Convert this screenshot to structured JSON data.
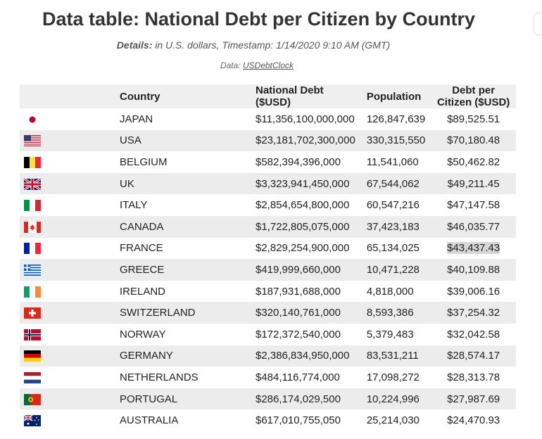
{
  "header": {
    "title": "Data table: National Debt per Citizen by Country",
    "details_label": "Details:",
    "details_text": " in U.S. dollars, Timestamp: 1/14/2020 9:10 AM (GMT)",
    "source_label": "Data: ",
    "source_link": "USDebtClock"
  },
  "table": {
    "columns": [
      "",
      "Country",
      "National Debt ($USD)",
      "Population",
      "Debt per Citizen ($USD)"
    ],
    "rows": [
      {
        "flag": "japan-flag-icon",
        "country": "JAPAN",
        "debt": "$11,356,100,000,000",
        "population": "126,847,639",
        "per_citizen": "$89,525.51"
      },
      {
        "flag": "usa-flag-icon",
        "country": "USA",
        "debt": "$23,181,702,300,000",
        "population": "330,315,550",
        "per_citizen": "$70,180.48"
      },
      {
        "flag": "belgium-flag-icon",
        "country": "BELGIUM",
        "debt": "$582,394,396,000",
        "population": "11,541,060",
        "per_citizen": "$50,462.82"
      },
      {
        "flag": "uk-flag-icon",
        "country": "UK",
        "debt": "$3,323,941,450,000",
        "population": "67,544,062",
        "per_citizen": "$49,211.45"
      },
      {
        "flag": "italy-flag-icon",
        "country": "ITALY",
        "debt": "$2,854,654,800,000",
        "population": "60,547,216",
        "per_citizen": "$47,147.58"
      },
      {
        "flag": "canada-flag-icon",
        "country": "CANADA",
        "debt": "$1,722,805,075,000",
        "population": "37,423,183",
        "per_citizen": "$46,035.77"
      },
      {
        "flag": "france-flag-icon",
        "country": "FRANCE",
        "debt": "$2,829,254,900,000",
        "population": "65,134,025",
        "per_citizen": "$43,437.43"
      },
      {
        "flag": "greece-flag-icon",
        "country": "GREECE",
        "debt": "$419,999,660,000",
        "population": "10,471,228",
        "per_citizen": "$40,109.88"
      },
      {
        "flag": "ireland-flag-icon",
        "country": "IRELAND",
        "debt": "$187,931,688,000",
        "population": "4,818,000",
        "per_citizen": "$39,006.16"
      },
      {
        "flag": "switzerland-flag-icon",
        "country": "SWITZERLAND",
        "debt": "$320,140,761,000",
        "population": "8,593,386",
        "per_citizen": "$37,254.32"
      },
      {
        "flag": "norway-flag-icon",
        "country": "NORWAY",
        "debt": "$172,372,540,000",
        "population": "5,379,483",
        "per_citizen": "$32,042.58"
      },
      {
        "flag": "germany-flag-icon",
        "country": "GERMANY",
        "debt": "$2,386,834,950,000",
        "population": "83,531,211",
        "per_citizen": "$28,574.17"
      },
      {
        "flag": "netherlands-flag-icon",
        "country": "NETHERLANDS",
        "debt": "$484,116,774,000",
        "population": "17,098,272",
        "per_citizen": "$28,313.78"
      },
      {
        "flag": "portugal-flag-icon",
        "country": "PORTUGAL",
        "debt": "$286,174,029,500",
        "population": "10,224,996",
        "per_citizen": "$27,987.69"
      },
      {
        "flag": "australia-flag-icon",
        "country": "AUSTRALIA",
        "debt": "$617,010,755,050",
        "population": "25,214,030",
        "per_citizen": "$24,470.93"
      }
    ]
  }
}
